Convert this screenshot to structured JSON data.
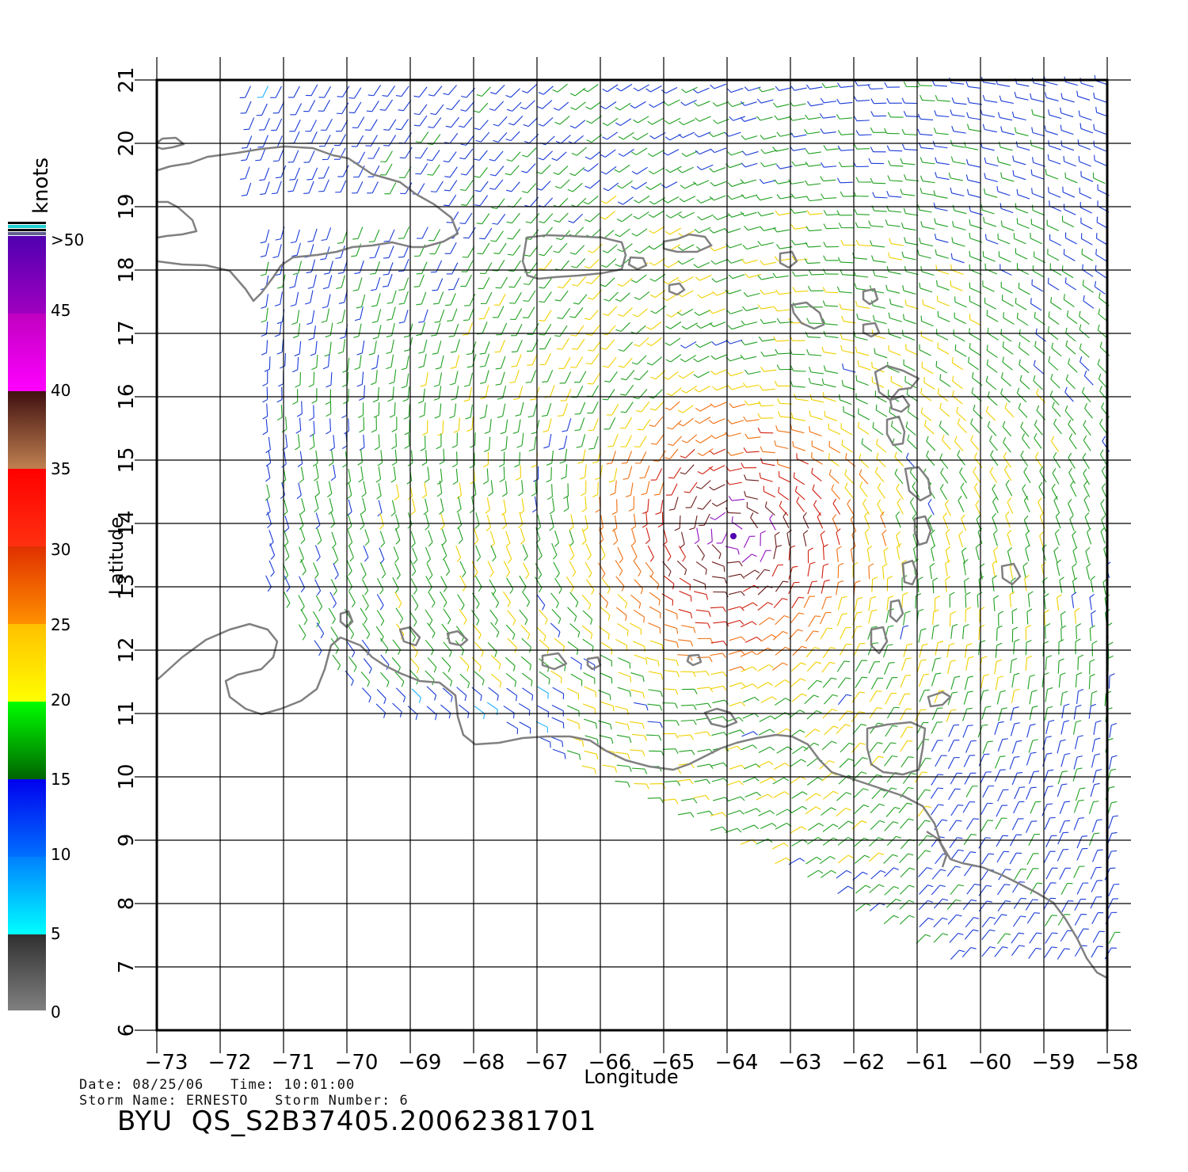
{
  "map": {
    "xlabel": "Longitude",
    "ylabel": "Latitude",
    "lon_ticks": [
      -73,
      -72,
      -71,
      -70,
      -69,
      -68,
      -67,
      -66,
      -65,
      -64,
      -63,
      -62,
      -61,
      -60,
      -59,
      -58
    ],
    "lat_ticks": [
      6,
      7,
      8,
      9,
      10,
      11,
      12,
      13,
      14,
      15,
      16,
      17,
      18,
      19,
      20,
      21
    ],
    "lon_range": [
      -73,
      -58
    ],
    "lat_range": [
      6,
      21
    ],
    "grid": true,
    "storm_center": {
      "lon": -63.9,
      "lat": 13.8
    },
    "wind_swath": {
      "lon_min": -71.5,
      "lon_max": -57.9,
      "lat_min": 7.0,
      "lat_max": 21.0
    }
  },
  "legend": {
    "title": "knots",
    "labels": [
      "0",
      "5",
      "10",
      "15",
      "20",
      "25",
      "30",
      "35",
      "40",
      "45",
      ">50"
    ],
    "colors": {
      "0_5": [
        "#808080",
        "#303030"
      ],
      "5_10": [
        "#00ffff",
        "#0080ff"
      ],
      "10_15": [
        "#0060ff",
        "#0000ee"
      ],
      "15_20": [
        "#006400",
        "#00ff00"
      ],
      "20_25": [
        "#ffff00",
        "#ffc000"
      ],
      "25_30": [
        "#ff8000",
        "#e03000"
      ],
      "30_35": [
        "#ff3010",
        "#ff0000"
      ],
      "35_40": [
        "#c08050",
        "#401010"
      ],
      "40_45": [
        "#ff00ff",
        "#c000c0"
      ],
      "45_50": [
        "#9000c0",
        "#5000b0"
      ]
    }
  },
  "footer": {
    "line1": "Date: 08/25/06   Time: 10:01:00",
    "line2": "Storm Name: ERNESTO   Storm Number: 6",
    "product": "BYU  QS_S2B37405.20062381701"
  },
  "colors": {
    "coastline": "#808080",
    "grid": "#000000"
  }
}
